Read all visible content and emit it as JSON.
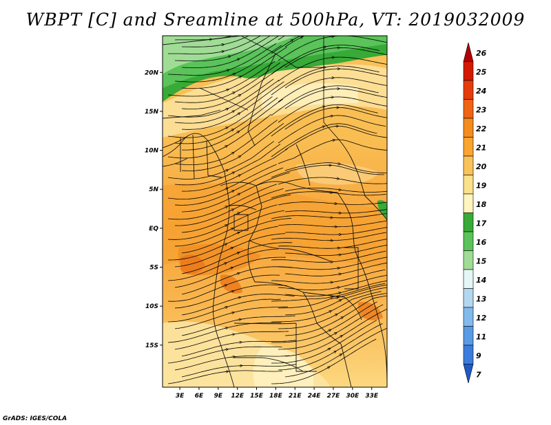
{
  "title": "WBPT [C] and Sreamline at 500hPa, VT: 2019032009",
  "credit": "GrADS: IGES/COLA",
  "map": {
    "variable": "WBPT",
    "units": "C",
    "level": "500hPa",
    "lat_labels": [
      "20N",
      "15N",
      "10N",
      "5N",
      "EQ",
      "5S",
      "10S",
      "15S"
    ],
    "lat_values": [
      20,
      15,
      10,
      5,
      0,
      -5,
      -10,
      -15
    ],
    "lon_labels": [
      "3E",
      "6E",
      "9E",
      "12E",
      "15E",
      "18E",
      "21E",
      "24E",
      "27E",
      "30E",
      "33E"
    ],
    "lon_values": [
      3,
      6,
      9,
      12,
      15,
      18,
      21,
      24,
      27,
      30,
      33
    ]
  },
  "colorbar": {
    "labels": [
      "26",
      "25",
      "24",
      "23",
      "22",
      "21",
      "20",
      "19",
      "18",
      "17",
      "16",
      "15",
      "14",
      "13",
      "12",
      "11",
      "9",
      "7"
    ],
    "colors": [
      "#b40000",
      "#d21a00",
      "#e63c0a",
      "#f06414",
      "#f58c1e",
      "#faa532",
      "#fac35a",
      "#fce18c",
      "#fff5be",
      "#37aa37",
      "#5ac35a",
      "#a0dc96",
      "#e6f5f5",
      "#b4d7f0",
      "#82baeb",
      "#5a9be6",
      "#3c7ddc",
      "#1e5ac8"
    ]
  }
}
